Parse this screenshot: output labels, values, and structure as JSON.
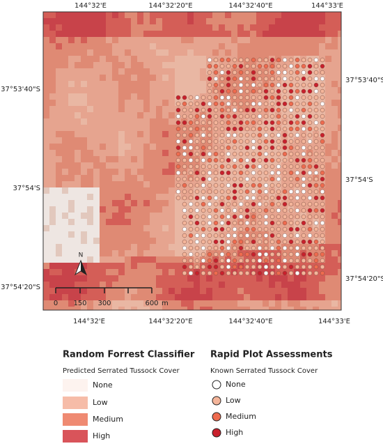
{
  "map": {
    "top_labels": [
      "144°32'E",
      "144°32'20\"E",
      "144°32'40\"E",
      "144°33'E"
    ],
    "bottom_labels": [
      "144°32'E",
      "144°32'20\"E",
      "144°32'40\"E",
      "144°33'E"
    ],
    "left_labels": [
      "37°53'40\"S",
      "37°54'S",
      "37°54'20\"S"
    ],
    "right_labels": [
      "37°53'40\"S",
      "37°54'S",
      "37°54'20\"S"
    ],
    "north": "N",
    "scale_bar": {
      "labels": [
        "0",
        "150",
        "300",
        "600"
      ],
      "unit": "m"
    }
  },
  "legend": {
    "classifier": {
      "title": "Random Forrest Classifier",
      "subtitle": "Predicted Serrated Tussock Cover",
      "items": [
        "None",
        "Low",
        "Medium",
        "High"
      ]
    },
    "plots": {
      "title": "Rapid Plot Assessments",
      "subtitle": "Known Serrated Tussock Cover",
      "items": [
        "None",
        "Low",
        "Medium",
        "High"
      ]
    }
  }
}
